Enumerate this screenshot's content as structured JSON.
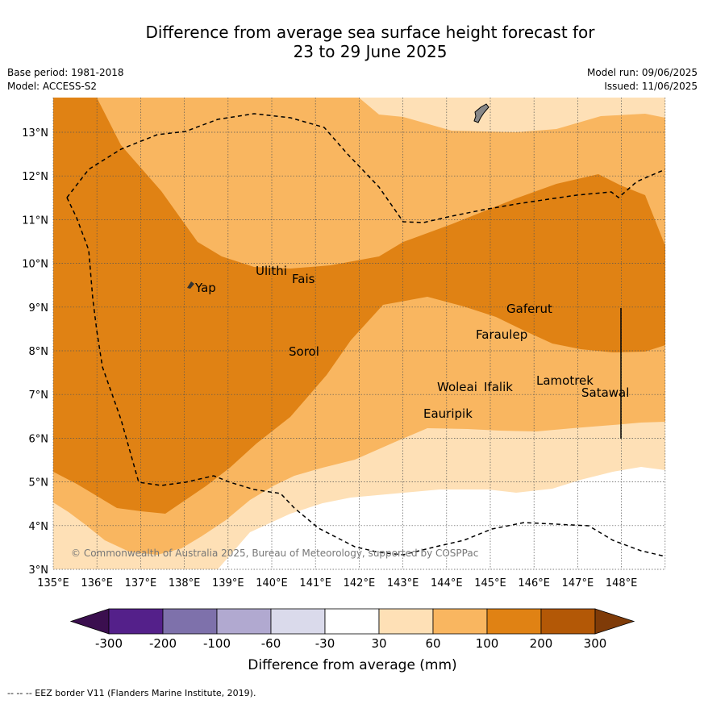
{
  "title_line1": "Difference from average sea surface height forecast for",
  "title_line2": "23 to 29 June 2025",
  "meta": {
    "base_period": "Base period: 1981-2018",
    "model": "Model: ACCESS-S2",
    "model_run": "Model run: 09/06/2025",
    "issued": "Issued: 11/06/2025"
  },
  "axes": {
    "lon_labels": [
      "135°E",
      "136°E",
      "137°E",
      "138°E",
      "139°E",
      "140°E",
      "141°E",
      "142°E",
      "143°E",
      "144°E",
      "145°E",
      "146°E",
      "147°E",
      "148°E"
    ],
    "lat_labels": [
      "3°N",
      "4°N",
      "5°N",
      "6°N",
      "7°N",
      "8°N",
      "9°N",
      "10°N",
      "11°N",
      "12°N",
      "13°N"
    ]
  },
  "places": [
    {
      "name": "Yap"
    },
    {
      "name": "Ulithi"
    },
    {
      "name": "Fais"
    },
    {
      "name": "Sorol"
    },
    {
      "name": "Gaferut"
    },
    {
      "name": "Faraulep"
    },
    {
      "name": "Woleai"
    },
    {
      "name": "Ifalik"
    },
    {
      "name": "Lamotrek"
    },
    {
      "name": "Satawal"
    },
    {
      "name": "Eauripik"
    }
  ],
  "copyright": "© Commonwealth of Australia 2025, Bureau of Meteorology, supported by COSPPac",
  "colorbar": {
    "label": "Difference from average (mm)",
    "ticks": [
      "-300",
      "-200",
      "-100",
      "-60",
      "-30",
      "30",
      "60",
      "100",
      "200",
      "300"
    ],
    "colors": {
      "below": "#3b0f4f",
      "n300": "#54208a",
      "n200": "#7e71ab",
      "n100": "#b1a9d0",
      "n60": "#dadaeb",
      "n30": "#ffffff",
      "p30": "#fee0b6",
      "p60": "#f9b660",
      "p100": "#e08214",
      "p200": "#b35806",
      "above": "#7f3b08"
    }
  },
  "footer": "--  --  -- EEZ border V11 (Flanders Marine Institute, 2019)."
}
